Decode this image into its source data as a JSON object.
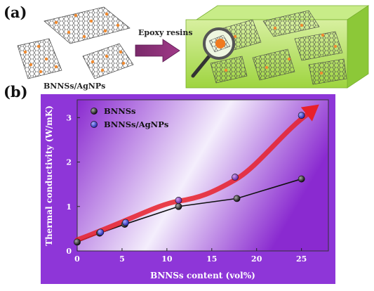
{
  "panel_a": {
    "label": "(a)",
    "filler_caption": "BNNSs/AgNPs",
    "arrow_label": "Epoxy resins"
  },
  "panel_b": {
    "label": "(b)"
  },
  "chart_data": {
    "type": "scatter",
    "xlabel": "BNNSs content (vol%)",
    "ylabel": "Thermal conductivity (W/mK)",
    "xlim": [
      0,
      28
    ],
    "ylim": [
      0,
      3.4
    ],
    "xticks": [
      0,
      5,
      10,
      15,
      20,
      25
    ],
    "yticks": [
      0,
      1,
      2,
      3
    ],
    "legend_position": "top-left",
    "series": [
      {
        "name": "BNNSs",
        "color": "#111111",
        "connected": true,
        "x": [
          0,
          2.5,
          5.3,
          11.3,
          17.8,
          25
        ],
        "y": [
          0.2,
          0.4,
          0.6,
          1.0,
          1.18,
          1.62
        ]
      },
      {
        "name": "BNNSs/AgNPs",
        "color": "#2a2ab8",
        "connected": false,
        "x": [
          2.6,
          5.4,
          11.3,
          17.6,
          25
        ],
        "y": [
          0.42,
          0.64,
          1.14,
          1.66,
          3.05
        ]
      }
    ],
    "trend_arrow_color": "#e8202a"
  }
}
